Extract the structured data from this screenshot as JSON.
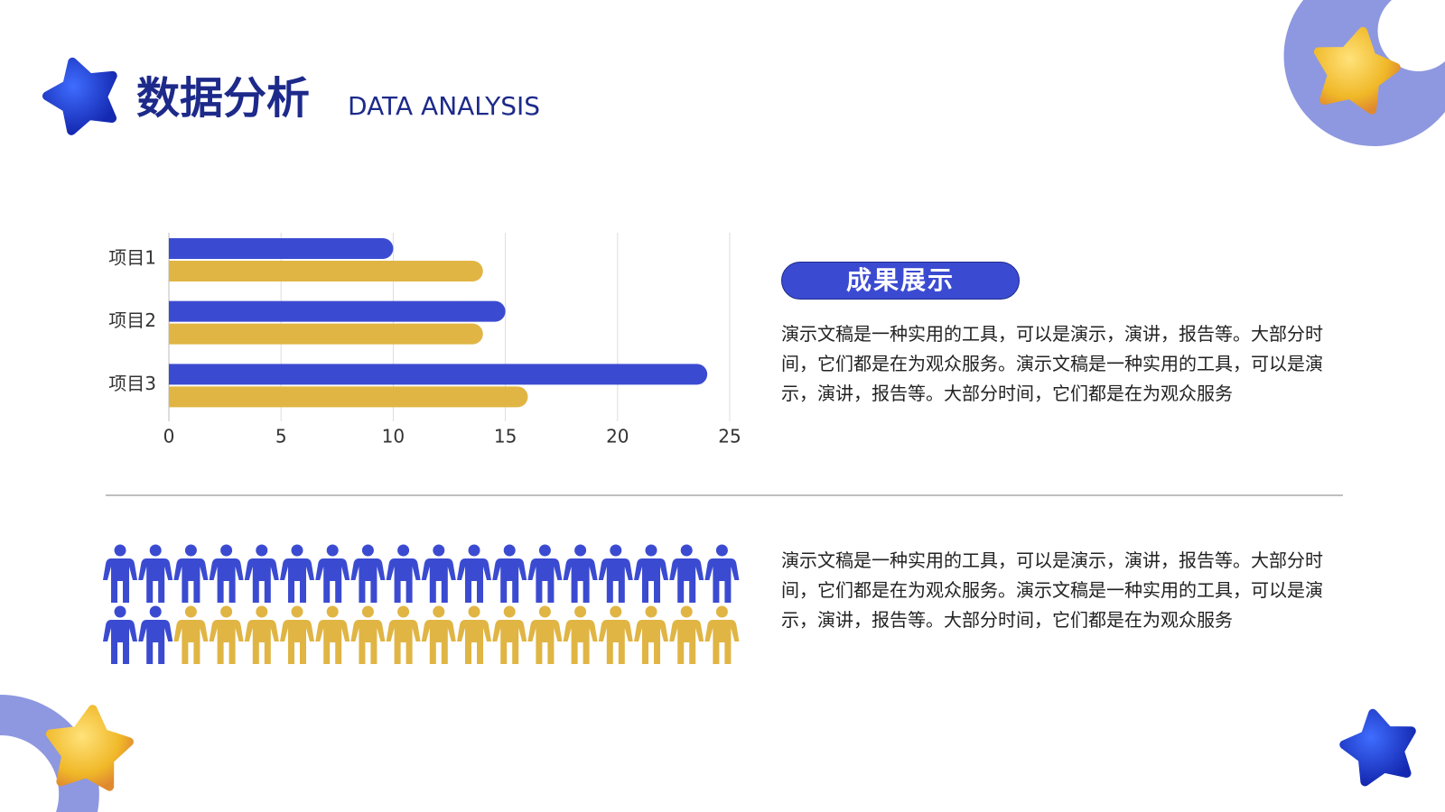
{
  "header": {
    "title": "数据分析",
    "subtitle": "DATA ANALYSIS"
  },
  "chart_data": {
    "type": "bar",
    "orientation": "horizontal",
    "categories": [
      "项目1",
      "项目2",
      "项目3"
    ],
    "series": [
      {
        "color": "#3b4bd1",
        "values": [
          10,
          15,
          24
        ]
      },
      {
        "color": "#e0b544",
        "values": [
          14,
          14,
          16
        ]
      }
    ],
    "xlim": [
      0,
      25
    ],
    "xticks": [
      0,
      5,
      10,
      15,
      20,
      25
    ],
    "grid": true
  },
  "badge": "成果展示",
  "paragraphs": [
    "演示文稿是一种实用的工具，可以是演示，演讲，报告等。大部分时间，它们都是在为观众服务。演示文稿是一种实用的工具，可以是演示，演讲，报告等。大部分时间，它们都是在为观众服务",
    "演示文稿是一种实用的工具，可以是演示，演讲，报告等。大部分时间，它们都是在为观众服务。演示文稿是一种实用的工具，可以是演示，演讲，报告等。大部分时间，它们都是在为观众服务"
  ],
  "pictogram": {
    "counts": [
      20,
      16
    ],
    "colors": [
      "#3b4bd1",
      "#e0b544"
    ]
  }
}
